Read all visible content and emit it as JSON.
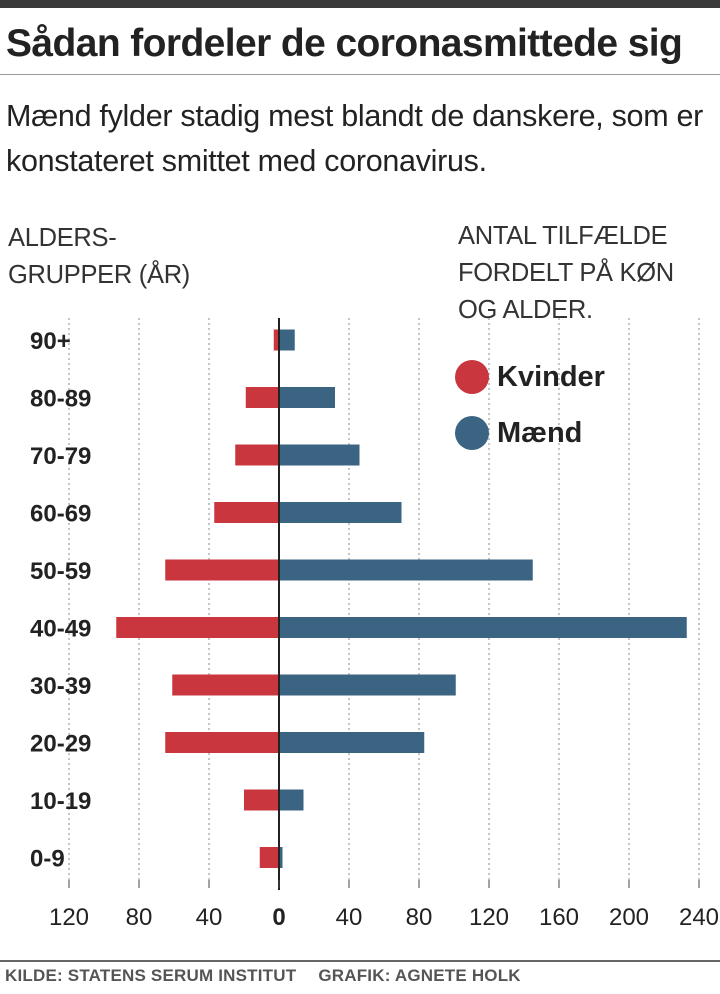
{
  "title": "Sådan fordeler de coronasmittede sig",
  "subtitle": "Mænd fylder stadig mest blandt de danskere, som er konstateret smittet med coronavirus.",
  "y_caption_line1": "ALDERS-",
  "y_caption_line2": "GRUPPER (ÅR)",
  "x_caption_line1": "ANTAL TILFÆLDE",
  "x_caption_line2": "FORDELT PÅ KØN",
  "x_caption_line3": "OG ALDER.",
  "legend": [
    {
      "label": "Kvinder",
      "color": "#c9363e"
    },
    {
      "label": "Mænd",
      "color": "#3b6483"
    }
  ],
  "credits": {
    "source": "KILDE: STATENS SERUM INSTITUT",
    "graphic": "GRAFIK: AGNETE HOLK"
  },
  "chart_data": {
    "type": "bar",
    "orientation": "horizontal-diverging",
    "categories": [
      "90+",
      "80-89",
      "70-79",
      "60-69",
      "50-59",
      "40-49",
      "30-39",
      "20-29",
      "10-19",
      "0-9"
    ],
    "series": [
      {
        "name": "Kvinder",
        "color": "#c9363e",
        "side": "left",
        "values": [
          3,
          19,
          25,
          37,
          65,
          93,
          61,
          65,
          20,
          11
        ]
      },
      {
        "name": "Mænd",
        "color": "#3b6483",
        "side": "right",
        "values": [
          9,
          32,
          46,
          70,
          145,
          233,
          101,
          83,
          14,
          2
        ]
      }
    ],
    "xticks": [
      {
        "label": "120",
        "value": -120
      },
      {
        "label": "80",
        "value": -80
      },
      {
        "label": "40",
        "value": -40
      },
      {
        "label": "0",
        "value": 0
      },
      {
        "label": "40",
        "value": 40
      },
      {
        "label": "80",
        "value": 80
      },
      {
        "label": "120",
        "value": 120
      },
      {
        "label": "160",
        "value": 160
      },
      {
        "label": "200",
        "value": 200
      },
      {
        "label": "240",
        "value": 240
      }
    ],
    "xlim": [
      -120,
      240
    ],
    "grid": "dotted vertical"
  }
}
